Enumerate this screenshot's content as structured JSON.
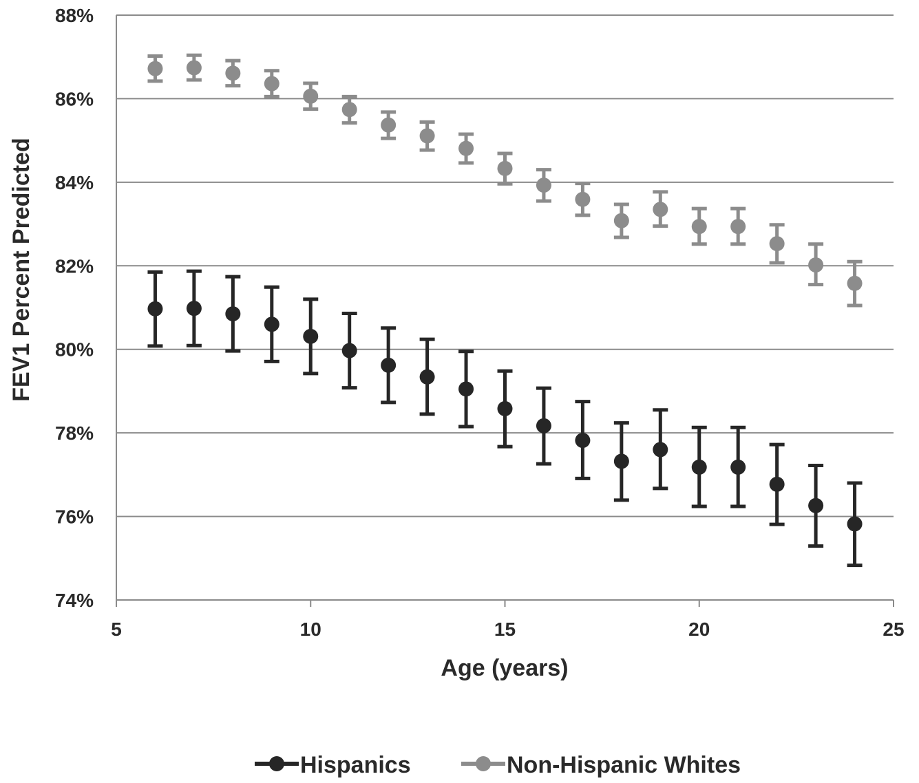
{
  "chart_data": {
    "type": "scatter",
    "title": "",
    "xlabel": "Age (years)",
    "ylabel": "FEV1 Percent Predicted",
    "xlim": [
      5,
      25
    ],
    "ylim": [
      74,
      88
    ],
    "x_ticks": [
      5,
      10,
      15,
      20,
      25
    ],
    "y_ticks": [
      74,
      76,
      78,
      80,
      82,
      84,
      86,
      88
    ],
    "y_tick_labels": [
      "74%",
      "76%",
      "78%",
      "80%",
      "82%",
      "84%",
      "86%",
      "88%"
    ],
    "x_tick_labels": [
      "5",
      "10",
      "15",
      "20",
      "25"
    ],
    "grid": "horizontal",
    "legend_position": "bottom",
    "error_bars": true,
    "series": [
      {
        "name": "Hispanics",
        "color": "#262626",
        "x": [
          6,
          7,
          8,
          9,
          10,
          11,
          12,
          13,
          14,
          15,
          16,
          17,
          18,
          19,
          20,
          21,
          22,
          23,
          24
        ],
        "y": [
          80.97,
          80.98,
          80.85,
          80.6,
          80.31,
          79.97,
          79.62,
          79.34,
          79.05,
          78.58,
          78.17,
          77.82,
          77.32,
          77.6,
          77.18,
          77.18,
          76.77,
          76.26,
          75.82
        ],
        "err_low": [
          80.08,
          80.09,
          79.96,
          79.71,
          79.42,
          79.08,
          78.73,
          78.45,
          78.15,
          77.67,
          77.26,
          76.91,
          76.39,
          76.67,
          76.24,
          76.24,
          75.81,
          75.29,
          74.83
        ],
        "err_high": [
          81.85,
          81.87,
          81.74,
          81.49,
          81.2,
          80.86,
          80.51,
          80.24,
          79.95,
          79.48,
          79.07,
          78.75,
          78.24,
          78.55,
          78.13,
          78.13,
          77.72,
          77.22,
          76.8
        ]
      },
      {
        "name": "Non-Hispanic Whites",
        "color": "#8c8c8c",
        "x": [
          6,
          7,
          8,
          9,
          10,
          11,
          12,
          13,
          14,
          15,
          16,
          17,
          18,
          19,
          20,
          21,
          22,
          23,
          24
        ],
        "y": [
          86.72,
          86.74,
          86.61,
          86.36,
          86.06,
          85.74,
          85.37,
          85.11,
          84.81,
          84.33,
          83.93,
          83.59,
          83.08,
          83.35,
          82.94,
          82.94,
          82.53,
          82.02,
          81.58
        ],
        "err_low": [
          86.42,
          86.45,
          86.31,
          86.05,
          85.75,
          85.42,
          85.05,
          84.77,
          84.46,
          83.96,
          83.55,
          83.21,
          82.68,
          82.95,
          82.52,
          82.52,
          82.07,
          81.55,
          81.05
        ],
        "err_high": [
          87.02,
          87.04,
          86.91,
          86.67,
          86.37,
          86.05,
          85.68,
          85.44,
          85.15,
          84.69,
          84.3,
          83.97,
          83.47,
          83.77,
          83.37,
          83.37,
          82.98,
          82.52,
          82.1
        ]
      }
    ]
  }
}
